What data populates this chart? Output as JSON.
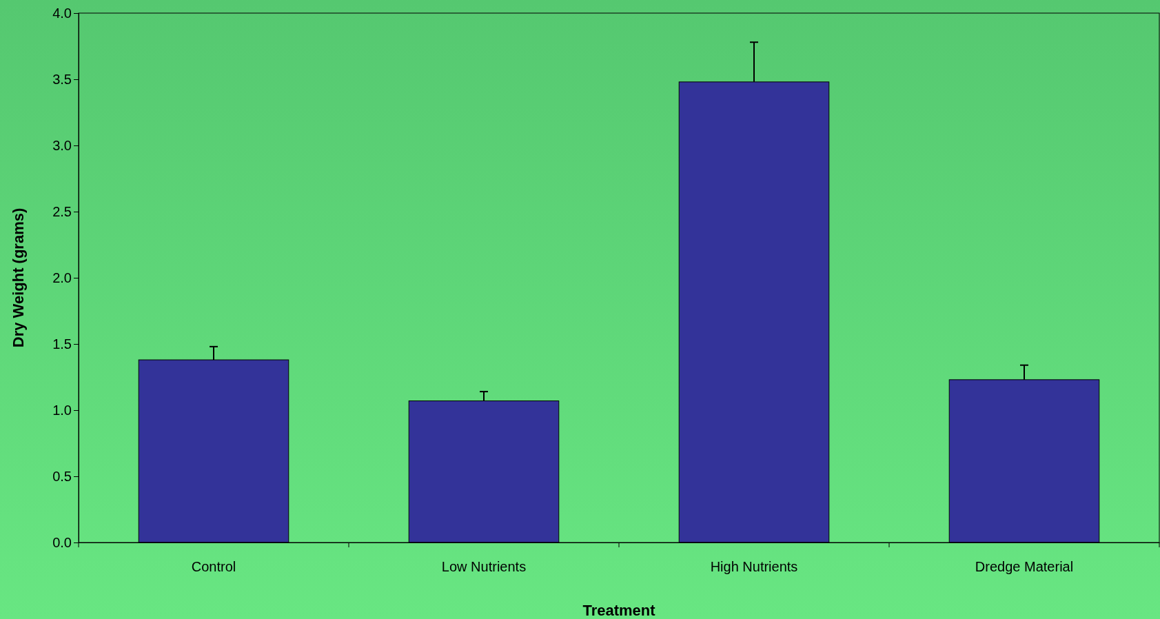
{
  "chart_data": {
    "type": "bar",
    "xlabel": "Treatment",
    "ylabel": "Dry Weight (grams)",
    "categories": [
      "Control",
      "Low Nutrients",
      "High Nutrients",
      "Dredge Material"
    ],
    "values": [
      1.38,
      1.07,
      3.48,
      1.23
    ],
    "errors": [
      [
        1.38,
        1.48
      ],
      [
        1.07,
        1.14
      ],
      [
        3.48,
        3.78
      ],
      [
        1.23,
        1.34
      ]
    ],
    "color": "#333399",
    "ylim": [
      0,
      4
    ],
    "yticks": [
      {
        "value": 0,
        "label": "0.0"
      },
      {
        "value": 0.5,
        "label": "0.5"
      },
      {
        "value": 1,
        "label": "1.0"
      },
      {
        "value": 1.5,
        "label": "1.5"
      },
      {
        "value": 2,
        "label": "2.0"
      },
      {
        "value": 2.5,
        "label": "2.5"
      },
      {
        "value": 3,
        "label": "3.0"
      },
      {
        "value": 3.5,
        "label": "3.5"
      },
      {
        "value": 4,
        "label": "4.0"
      }
    ],
    "grid": false
  }
}
